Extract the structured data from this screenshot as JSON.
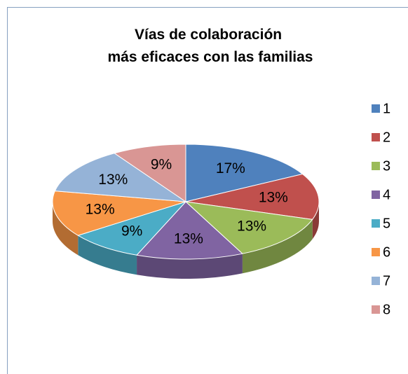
{
  "chart_data": {
    "type": "pie",
    "title": "Vías de colaboración más eficaces con las familias",
    "categories": [
      "1",
      "2",
      "3",
      "4",
      "5",
      "6",
      "7",
      "8"
    ],
    "values": [
      17,
      13,
      13,
      13,
      9,
      13,
      13,
      9
    ],
    "value_labels": [
      "17%",
      "13%",
      "13%",
      "13%",
      "9%",
      "13%",
      "13%",
      "9%"
    ],
    "colors": [
      "#4f81bd",
      "#c0504d",
      "#9bbb59",
      "#8064a2",
      "#4bacc6",
      "#f79646",
      "#95b3d7",
      "#d99694"
    ],
    "legend": "right"
  }
}
